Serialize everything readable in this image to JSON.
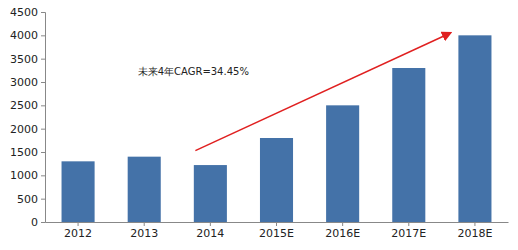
{
  "chart_data": {
    "type": "bar",
    "categories": [
      "2012",
      "2013",
      "2014",
      "2015E",
      "2016E",
      "2017E",
      "2018E"
    ],
    "values": [
      1300,
      1400,
      1220,
      1800,
      2500,
      3300,
      4000
    ],
    "color": "#4472a8",
    "ylim": [
      0,
      4500
    ],
    "yticks": [
      0,
      500,
      1000,
      1500,
      2000,
      2500,
      3000,
      3500,
      4000,
      4500
    ],
    "grid": false,
    "annotations": [
      {
        "text": "未来4年CAGR=34.45%"
      }
    ]
  }
}
